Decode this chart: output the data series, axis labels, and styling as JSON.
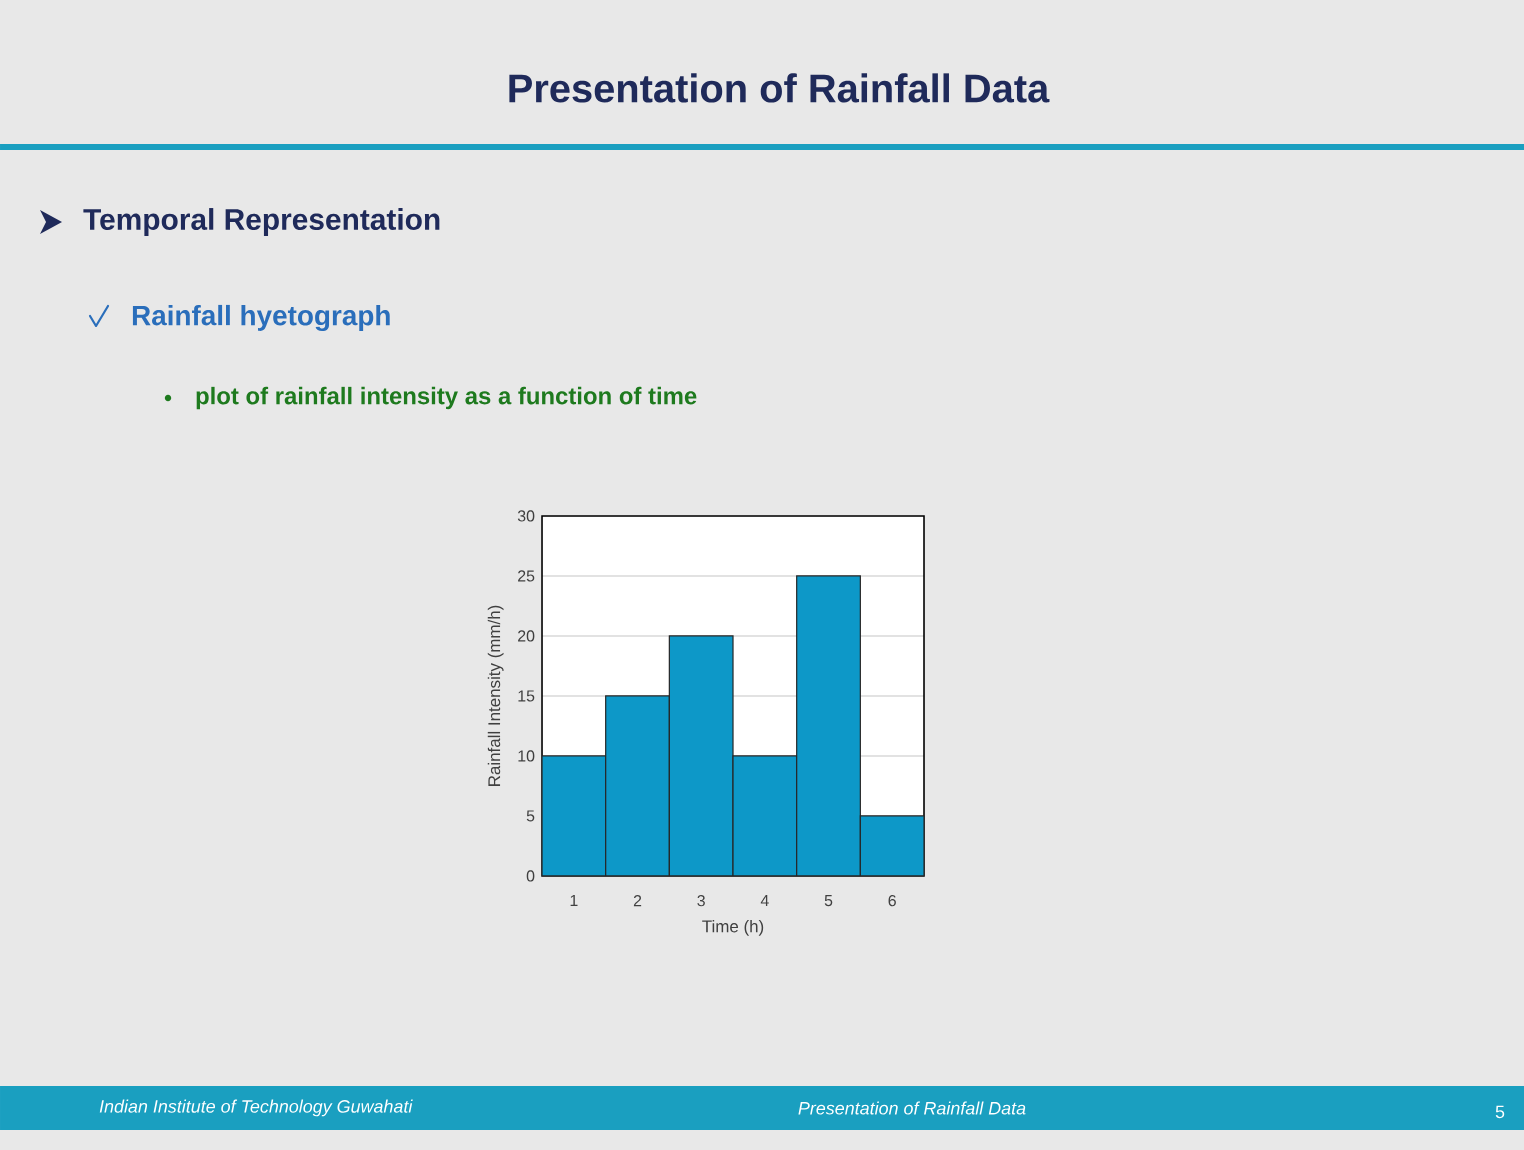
{
  "chart_data": {
    "type": "bar",
    "title": "Presentation of Rainfall Data",
    "subtitle": "Temporal Representation",
    "annotations": [
      "Rainfall hyetograph",
      "plot of rainfall intensity as a function of time",
      "Indian Institute of Technology Guwahati",
      "Presentation of Rainfall Data",
      "5"
    ],
    "categories": [
      "1",
      "2",
      "3",
      "4",
      "5",
      "6"
    ],
    "values": [
      10,
      15,
      20,
      10,
      25,
      5
    ],
    "color": "#0d98c8",
    "xlabel": "Time (h)",
    "ylabel": "Rainfall Intensity (mm/h)",
    "ylim": [
      0,
      30
    ],
    "yticks": [
      0,
      5,
      10,
      15,
      20,
      25,
      30
    ],
    "grid": "y"
  }
}
